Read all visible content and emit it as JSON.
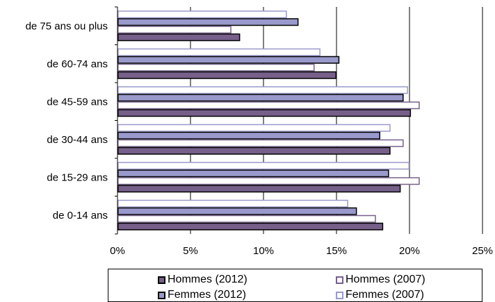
{
  "chart_data": {
    "type": "bar",
    "orientation": "horizontal",
    "categories": [
      "de 0-14 ans",
      "de 15-29 ans",
      "de 30-44 ans",
      "de 45-59 ans",
      "de 60-74 ans",
      "de 75 ans ou plus"
    ],
    "series": [
      {
        "name": "Hommes (2012)",
        "values": [
          18.2,
          19.4,
          18.7,
          20.1,
          15.0,
          8.4
        ],
        "fill": "#76608A",
        "stroke": "#000000"
      },
      {
        "name": "Hommes (2007)",
        "values": [
          17.7,
          20.7,
          19.6,
          20.7,
          13.5,
          7.8
        ],
        "fill": "#FFFFFF",
        "stroke": "#76608A"
      },
      {
        "name": "Femmes (2012)",
        "values": [
          16.4,
          18.6,
          18.0,
          19.6,
          15.2,
          12.4
        ],
        "fill": "#9999CC",
        "stroke": "#000000"
      },
      {
        "name": "Femmes (2007)",
        "values": [
          15.8,
          20.0,
          18.7,
          19.9,
          13.9,
          11.6
        ],
        "fill": "#FFFFFF",
        "stroke": "#9999CC"
      }
    ],
    "xlim": [
      0,
      25
    ],
    "x_ticks": [
      "0%",
      "5%",
      "10%",
      "15%",
      "20%",
      "25%"
    ],
    "grid": "vertical",
    "legend_position": "bottom"
  },
  "legend": {
    "items": [
      {
        "label": "Hommes (2012)",
        "fill": "#76608A",
        "stroke": "#000000"
      },
      {
        "label": "Hommes (2007)",
        "fill": "#FFFFFF",
        "stroke": "#76608A"
      },
      {
        "label": "Femmes (2012)",
        "fill": "#9999CC",
        "stroke": "#000000"
      },
      {
        "label": "Femmes (2007)",
        "fill": "#FFFFFF",
        "stroke": "#9999CC"
      }
    ]
  }
}
